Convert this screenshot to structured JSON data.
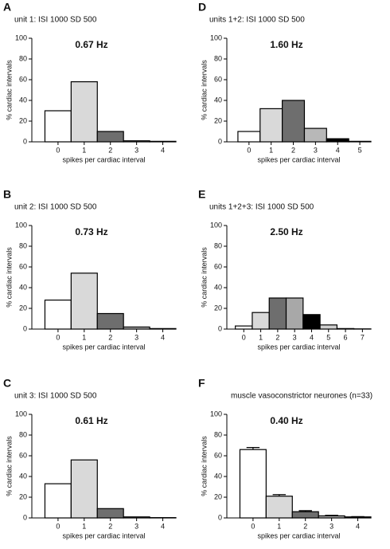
{
  "chart_data": [
    {
      "type": "bar",
      "panel": "A",
      "title": "unit 1: ISI 1000 SD 500",
      "annotation": "0.67 Hz",
      "ylabel": "% cardiac intervals",
      "xlabel": "spikes per cardiac interval",
      "categories": [
        "0",
        "1",
        "2",
        "3",
        "4"
      ],
      "values": [
        30,
        58,
        10,
        1,
        0.5
      ],
      "colors": [
        "#ffffff",
        "#d9d9d9",
        "#6e6e6e",
        "#b0b0b0",
        "#000000"
      ],
      "ylim": [
        0,
        100
      ],
      "yticks": [
        0,
        20,
        40,
        60,
        80,
        100
      ]
    },
    {
      "type": "bar",
      "panel": "B",
      "title": "unit 2: ISI 1000 SD 500",
      "annotation": "0.73 Hz",
      "ylabel": "% cardiac intervals",
      "xlabel": "spikes per cardiac interval",
      "categories": [
        "0",
        "1",
        "2",
        "3",
        "4"
      ],
      "values": [
        28,
        54,
        15,
        2,
        0.5
      ],
      "colors": [
        "#ffffff",
        "#d9d9d9",
        "#6e6e6e",
        "#b0b0b0",
        "#000000"
      ],
      "ylim": [
        0,
        100
      ],
      "yticks": [
        0,
        20,
        40,
        60,
        80,
        100
      ]
    },
    {
      "type": "bar",
      "panel": "C",
      "title": "unit 3: ISI 1000 SD 500",
      "annotation": "0.61 Hz",
      "ylabel": "% cardiac intervals",
      "xlabel": "spikes per cardiac interval",
      "categories": [
        "0",
        "1",
        "2",
        "3",
        "4"
      ],
      "values": [
        33,
        56,
        9,
        1,
        0.3
      ],
      "colors": [
        "#ffffff",
        "#d9d9d9",
        "#6e6e6e",
        "#b0b0b0",
        "#000000"
      ],
      "ylim": [
        0,
        100
      ],
      "yticks": [
        0,
        20,
        40,
        60,
        80,
        100
      ]
    },
    {
      "type": "bar",
      "panel": "D",
      "title": "units 1+2: ISI 1000 SD 500",
      "annotation": "1.60 Hz",
      "ylabel": "% cardiac intervals",
      "xlabel": "spikes per cardiac interval",
      "categories": [
        "0",
        "1",
        "2",
        "3",
        "4",
        "5"
      ],
      "values": [
        10,
        32,
        40,
        13,
        3,
        0.5
      ],
      "colors": [
        "#ffffff",
        "#d9d9d9",
        "#6e6e6e",
        "#b8b8b8",
        "#000000",
        "#d0d0d0"
      ],
      "ylim": [
        0,
        100
      ],
      "yticks": [
        0,
        20,
        40,
        60,
        80,
        100
      ]
    },
    {
      "type": "bar",
      "panel": "E",
      "title": "units 1+2+3: ISI 1000 SD 500",
      "annotation": "2.50 Hz",
      "ylabel": "% cardiac intervals",
      "xlabel": "spikes per cardiac interval",
      "categories": [
        "0",
        "1",
        "2",
        "3",
        "4",
        "5",
        "6",
        "7"
      ],
      "values": [
        3,
        16,
        30,
        30,
        14,
        4,
        0.5,
        0.2
      ],
      "colors": [
        "#ffffff",
        "#d9d9d9",
        "#6e6e6e",
        "#a8a8a8",
        "#000000",
        "#d0d0d0",
        "#ffffff",
        "#ffffff"
      ],
      "ylim": [
        0,
        100
      ],
      "yticks": [
        0,
        20,
        40,
        60,
        80,
        100
      ]
    },
    {
      "type": "errorbar",
      "panel": "F",
      "title": "muscle vasoconstrictor neurones (n=33)",
      "annotation": "0.40 Hz",
      "ylabel": "% cardiac intervals",
      "xlabel": "spikes per cardiac interval",
      "categories": [
        "0",
        "1",
        "2",
        "3",
        "4"
      ],
      "values": [
        66,
        21,
        6,
        2,
        1
      ],
      "errors": [
        2,
        1.5,
        1,
        0.5,
        0.3
      ],
      "colors": [
        "#ffffff",
        "#d9d9d9",
        "#6e6e6e",
        "#b0b0b0",
        "#000000"
      ],
      "ylim": [
        0,
        100
      ],
      "yticks": [
        0,
        20,
        40,
        60,
        80,
        100
      ]
    }
  ]
}
